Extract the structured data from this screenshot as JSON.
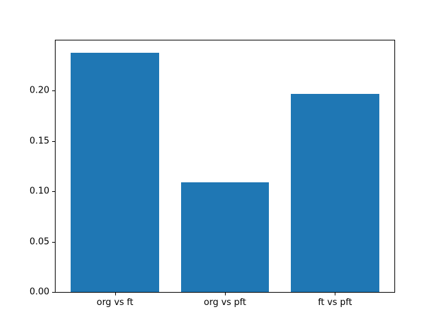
{
  "figure": {
    "background": "#ffffff"
  },
  "chart_data": {
    "type": "bar",
    "title": "",
    "xlabel": "",
    "ylabel": "",
    "categories": [
      "org vs ft",
      "org vs pft",
      "ft vs pft"
    ],
    "values": [
      0.238,
      0.109,
      0.197
    ],
    "bar_color": "#1f77b4",
    "bar_width": 0.8,
    "xlim": [
      -0.54,
      2.54
    ],
    "ylim": [
      0,
      0.25
    ],
    "yticks": {
      "values": [
        0,
        0.05,
        0.1,
        0.15,
        0.2
      ],
      "labels": [
        "0.00",
        "0.05",
        "0.10",
        "0.15",
        "0.20"
      ]
    },
    "grid": false,
    "legend": false
  }
}
